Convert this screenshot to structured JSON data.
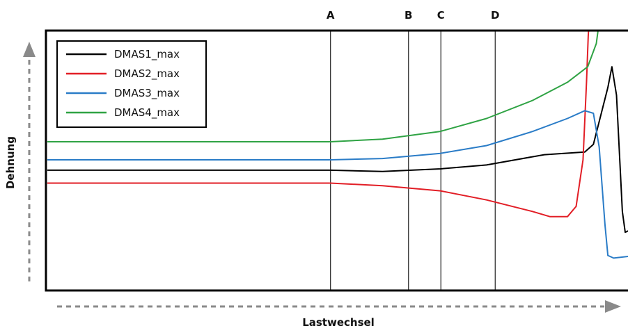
{
  "chart_data": {
    "type": "line",
    "title": "",
    "xlabel": "Lastwechsel",
    "ylabel": "Dehnung",
    "x_ticks": false,
    "y_ticks": false,
    "legend_position": "top-left",
    "markers": [
      {
        "label": "A",
        "x": 0.49
      },
      {
        "label": "B",
        "x": 0.625
      },
      {
        "label": "C",
        "x": 0.681
      },
      {
        "label": "D",
        "x": 0.775
      }
    ],
    "series": [
      {
        "name": "DMAS1_max",
        "color": "#000000",
        "points": [
          [
            0,
            0.46
          ],
          [
            0.49,
            0.46
          ],
          [
            0.58,
            0.455
          ],
          [
            0.68,
            0.465
          ],
          [
            0.76,
            0.48
          ],
          [
            0.86,
            0.52
          ],
          [
            0.93,
            0.53
          ],
          [
            0.945,
            0.56
          ],
          [
            0.97,
            0.78
          ],
          [
            0.977,
            0.86
          ],
          [
            0.985,
            0.75
          ],
          [
            0.995,
            0.3
          ],
          [
            1.0,
            0.22
          ],
          [
            1.02,
            0.24
          ]
        ]
      },
      {
        "name": "DMAS2_max",
        "color": "#e21e26",
        "points": [
          [
            0,
            0.41
          ],
          [
            0.49,
            0.41
          ],
          [
            0.58,
            0.4
          ],
          [
            0.68,
            0.38
          ],
          [
            0.76,
            0.345
          ],
          [
            0.84,
            0.3
          ],
          [
            0.87,
            0.28
          ],
          [
            0.9,
            0.28
          ],
          [
            0.915,
            0.32
          ],
          [
            0.927,
            0.5
          ],
          [
            0.933,
            0.8
          ],
          [
            0.936,
            0.98
          ],
          [
            0.94,
            1.12
          ]
        ]
      },
      {
        "name": "DMAS3_max",
        "color": "#2a7cc7",
        "points": [
          [
            0,
            0.5
          ],
          [
            0.49,
            0.5
          ],
          [
            0.58,
            0.505
          ],
          [
            0.68,
            0.525
          ],
          [
            0.76,
            0.555
          ],
          [
            0.84,
            0.61
          ],
          [
            0.9,
            0.66
          ],
          [
            0.93,
            0.69
          ],
          [
            0.945,
            0.68
          ],
          [
            0.955,
            0.55
          ],
          [
            0.965,
            0.25
          ],
          [
            0.97,
            0.13
          ],
          [
            0.98,
            0.12
          ],
          [
            1.02,
            0.13
          ]
        ]
      },
      {
        "name": "DMAS4_max",
        "color": "#2fa344",
        "points": [
          [
            0,
            0.57
          ],
          [
            0.49,
            0.57
          ],
          [
            0.58,
            0.58
          ],
          [
            0.68,
            0.61
          ],
          [
            0.76,
            0.66
          ],
          [
            0.84,
            0.73
          ],
          [
            0.9,
            0.8
          ],
          [
            0.935,
            0.86
          ],
          [
            0.95,
            0.95
          ],
          [
            0.96,
            1.12
          ]
        ]
      }
    ]
  },
  "colors": {
    "frame": "#000000",
    "marker_line": "#222222",
    "axis_arrow": "#8a8a8a",
    "background": "#ffffff"
  }
}
